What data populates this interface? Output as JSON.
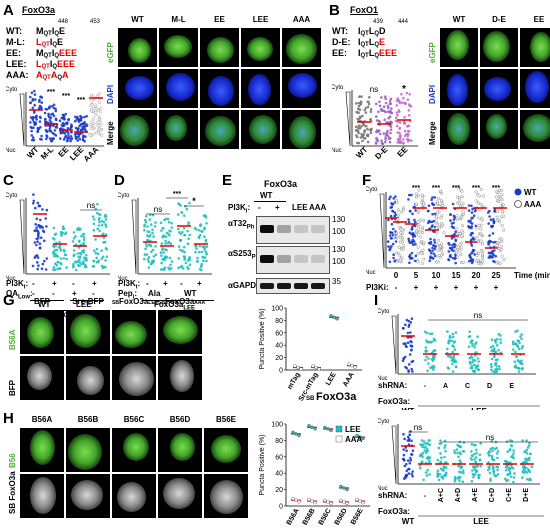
{
  "panels": {
    "A": {
      "letter": "A",
      "gene": "FoxO3a",
      "pos_start": "448",
      "pos_end": "453",
      "constructs": [
        {
          "name": "WT:",
          "seq": [
            [
              "M",
              "n"
            ],
            [
              "QT",
              "s"
            ],
            [
              "I",
              "n"
            ],
            [
              "Q",
              "s"
            ],
            [
              "E",
              "n"
            ]
          ]
        },
        {
          "name": "M-L:",
          "seq": [
            [
              "L",
              "r"
            ],
            [
              "QT",
              "rs"
            ],
            [
              "I",
              "n"
            ],
            [
              "Q",
              "s"
            ],
            [
              "E",
              "n"
            ]
          ]
        },
        {
          "name": "EE:",
          "seq": [
            [
              "M",
              "n"
            ],
            [
              "QT",
              "s"
            ],
            [
              "I",
              "n"
            ],
            [
              "Q",
              "s"
            ],
            [
              "EEE",
              "r"
            ]
          ]
        },
        {
          "name": "LEE:",
          "seq": [
            [
              "L",
              "r"
            ],
            [
              "QT",
              "rs"
            ],
            [
              "I",
              "n"
            ],
            [
              "Q",
              "s"
            ],
            [
              "EEE",
              "r"
            ]
          ]
        },
        {
          "name": "AAA:",
          "seq": [
            [
              "A",
              "r"
            ],
            [
              "QT",
              "rs"
            ],
            [
              "A",
              "r"
            ],
            [
              "Q",
              "s"
            ],
            [
              "A",
              "r"
            ]
          ]
        }
      ],
      "plot": {
        "cyto": "Cyto",
        "nuc": "Nuc",
        "xlabels": [
          "WT",
          "M-L",
          "EE",
          "LEE",
          "AAA"
        ],
        "stars": [
          "***",
          "***",
          "***"
        ]
      },
      "columns": [
        "WT",
        "M-L",
        "EE",
        "LEE",
        "AAA"
      ],
      "rows": [
        "eGFP",
        "DAPI",
        "Merge"
      ]
    },
    "B": {
      "letter": "B",
      "gene": "FoxO1",
      "pos_start": "439",
      "pos_end": "444",
      "constructs": [
        {
          "name": "WT:",
          "seq": [
            [
              "I",
              "n"
            ],
            [
              "QT",
              "s"
            ],
            [
              "L",
              "n"
            ],
            [
              "Q",
              "s"
            ],
            [
              "D",
              "n"
            ]
          ]
        },
        {
          "name": "D-E:",
          "seq": [
            [
              "I",
              "n"
            ],
            [
              "QT",
              "s"
            ],
            [
              "L",
              "n"
            ],
            [
              "Q",
              "s"
            ],
            [
              "E",
              "r"
            ]
          ]
        },
        {
          "name": "EE:",
          "seq": [
            [
              "I",
              "n"
            ],
            [
              "QT",
              "s"
            ],
            [
              "L",
              "n"
            ],
            [
              "Q",
              "s"
            ],
            [
              "EEE",
              "r"
            ]
          ]
        }
      ],
      "plot": {
        "cyto": "Cyto",
        "nuc": "Nuc",
        "xlabels": [
          "WT",
          "D-E",
          "EE"
        ],
        "ns": "ns",
        "star": "*"
      },
      "columns": [
        "WT",
        "D-E",
        "EE"
      ],
      "rows": [
        "eGFP",
        "DAPI",
        "Merge"
      ]
    },
    "C": {
      "letter": "C",
      "cyto": "Cyto",
      "nuc": "Nuc",
      "ns": "ns",
      "row1_label": "PI3K",
      "row1_sub": "i",
      "row1": [
        "-",
        "+",
        "-",
        "+"
      ],
      "row2_label": "OA",
      "row2_sub": "Low",
      "row2": [
        "-",
        "-",
        "+",
        "-"
      ],
      "group_wt": "WT",
      "group_lee": "LEE",
      "gene": "FoxO3a"
    },
    "D": {
      "letter": "D",
      "cyto": "Cyto",
      "nuc": "Nuc",
      "ns": "ns",
      "stars": [
        "***",
        "*"
      ],
      "row1_label": "PI3K",
      "row1_sub": "i",
      "row1": [
        "-",
        "+",
        "-",
        "+"
      ],
      "row2_label": "Pep",
      "row2_sub": "i",
      "pep_groups": [
        "Ala",
        "WT"
      ],
      "gene": "FoxO3a",
      "gene_sub": "LEE"
    },
    "E": {
      "letter": "E",
      "gene": "FoxO3a",
      "wt": "WT",
      "cols": [
        "-",
        "+",
        "LEE",
        "AAA"
      ],
      "pi3k": "PI3K",
      "pi3k_sub": "i",
      "bands": [
        {
          "label": "αT32",
          "sub": "Ph",
          "mw": [
            "130",
            "100"
          ]
        },
        {
          "label": "αS253",
          "sub": "Ph",
          "mw": [
            "130",
            "100"
          ]
        },
        {
          "label": "αGAPDH",
          "sub": "",
          "mw": [
            "35"
          ]
        }
      ]
    },
    "F": {
      "letter": "F",
      "cyto": "Cyto",
      "nuc": "Nuc",
      "times": [
        "0",
        "5",
        "10",
        "15",
        "20",
        "25"
      ],
      "time_label": "Time (min)",
      "pi3k": "PI3K",
      "pi3k_sub": "i",
      "signs": [
        "-",
        "+",
        "+",
        "+",
        "+",
        "+"
      ],
      "stars": [
        "***",
        "***",
        "***",
        "***",
        "***"
      ],
      "legend": [
        "WT",
        "AAA"
      ]
    },
    "G": {
      "letter": "G",
      "columns": [
        "BFP",
        "Src-BFP",
        "FoxO3a",
        "FoxO3a"
      ],
      "col_prefix": "SB",
      "col_subs": [
        "LEE",
        "AAA"
      ],
      "rows": [
        "B56A",
        "BFP"
      ],
      "ylabel": "Puncta Positive (%)",
      "yticks": [
        "100",
        "80",
        "60",
        "40",
        "20",
        "0"
      ],
      "xlabels": [
        "mTag",
        "Src-mTag",
        "LEE",
        "AAA"
      ],
      "group": "FoxO3a",
      "group_prefix": "SB"
    },
    "H": {
      "letter": "H",
      "columns": [
        "B56A",
        "B56B",
        "B56C",
        "B56D",
        "B56E"
      ],
      "rows": [
        "B56",
        "FoxO3a"
      ],
      "row2_prefix": "SB",
      "ylabel": "Puncta Positive (%)",
      "yticks": [
        "100",
        "80",
        "60",
        "40",
        "20",
        "0"
      ],
      "xlabels": [
        "B56A",
        "B56B",
        "B56C",
        "B56D",
        "B56E"
      ],
      "legend": [
        "LEE",
        "AAA"
      ]
    },
    "I": {
      "letter": "I",
      "cyto": "Cyto",
      "nuc": "Nuc",
      "top": {
        "ns": "ns",
        "shrna_label": "shRNA:",
        "shrna": [
          "-",
          "A",
          "C",
          "D",
          "E"
        ],
        "foxo_label": "FoxO3a:",
        "wt": "WT",
        "lee": "LEE"
      },
      "bottom": {
        "ns": [
          "ns",
          "ns"
        ],
        "shrna_label": "shRNA:",
        "shrna": [
          "-",
          "A+C",
          "A+D",
          "A+E",
          "C+D",
          "C+E",
          "D+E"
        ],
        "foxo_label": "FoxO3a:",
        "wt": "WT",
        "lee": "LEE"
      }
    }
  },
  "chart_data": [
    {
      "type": "bar",
      "panel": "G",
      "categories": [
        "mTag",
        "Src-mTag",
        "LEE",
        "AAA"
      ],
      "values": [
        4,
        4,
        85,
        7
      ],
      "ylim": [
        0,
        100
      ],
      "ylabel": "Puncta Positive (%)"
    },
    {
      "type": "bar",
      "panel": "H",
      "categories": [
        "B56A",
        "B56B",
        "B56C",
        "B56D",
        "B56E"
      ],
      "series": [
        {
          "name": "LEE",
          "values": [
            88,
            96,
            94,
            22,
            84
          ]
        },
        {
          "name": "AAA",
          "values": [
            7,
            6,
            5,
            5,
            6
          ]
        }
      ],
      "ylim": [
        0,
        100
      ],
      "ylabel": "Puncta Positive (%)"
    },
    {
      "type": "scatter",
      "panel": "F",
      "x": [
        0,
        5,
        10,
        15,
        20,
        25
      ],
      "series": [
        {
          "name": "WT"
        },
        {
          "name": "AAA"
        }
      ],
      "xlabel": "Time (min)"
    }
  ],
  "colors": {
    "red": "#e00000",
    "cyan": "#20c0c0",
    "blue": "#1a3ccc",
    "green": "#4caf35"
  }
}
